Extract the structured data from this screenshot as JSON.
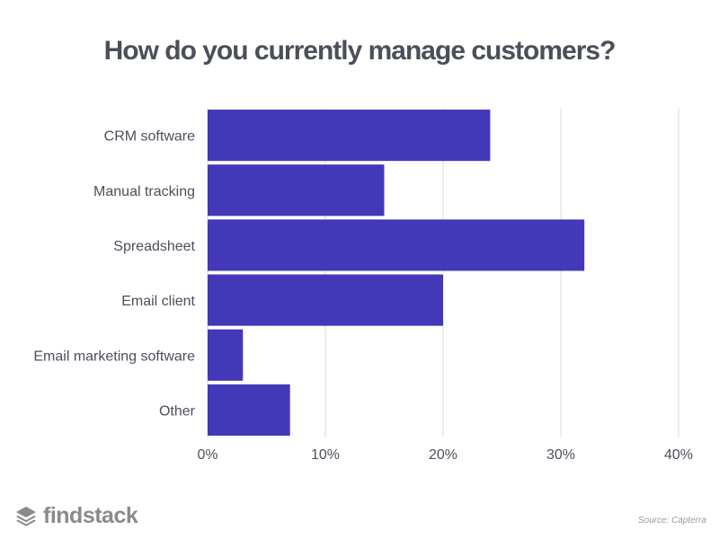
{
  "chart_data": {
    "type": "bar",
    "orientation": "horizontal",
    "title": "How do you currently manage customers?",
    "xlabel": "",
    "ylabel": "",
    "categories": [
      "CRM software",
      "Manual tracking",
      "Spreadsheet",
      "Email client",
      "Email marketing software",
      "Other"
    ],
    "values": [
      24,
      15,
      32,
      20,
      3,
      7
    ],
    "xlim": [
      0,
      40
    ],
    "xticks": [
      0,
      10,
      20,
      30,
      40
    ],
    "tick_labels": [
      "0%",
      "10%",
      "20%",
      "30%",
      "40%"
    ],
    "grid": "vertical",
    "legend": "none",
    "bar_color": "#4338b8"
  },
  "brand": {
    "name": "findstack",
    "icon": "stacked-layers-icon"
  },
  "source": "Source: Capterra",
  "colors": {
    "title": "#4a4f5a",
    "labels": "#4a4f5a",
    "grid": "#dddddd",
    "brand": "#8a8a8a"
  }
}
